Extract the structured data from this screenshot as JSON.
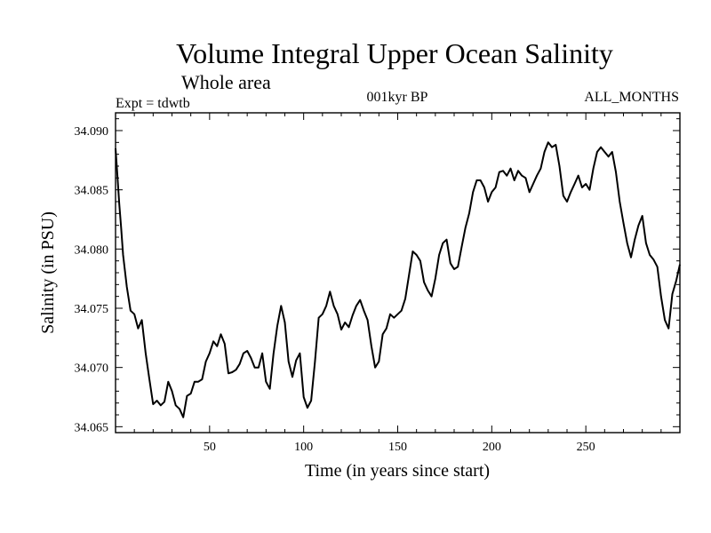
{
  "chart_data": {
    "type": "line",
    "title": "Volume Integral Upper Ocean Salinity",
    "subtitle": "Whole area",
    "expt_label": "Expt = tdwtb",
    "period_label": "001kyr BP",
    "months_label": "ALL_MONTHS",
    "xlabel": "Time (in years since start)",
    "ylabel": "Salinity (in PSU)",
    "xlim": [
      0,
      300
    ],
    "ylim": [
      34.0645,
      34.0915
    ],
    "xticks": [
      50,
      100,
      150,
      200,
      250
    ],
    "xtick_labels": [
      "50",
      "100",
      "150",
      "200",
      "250"
    ],
    "yticks": [
      34.065,
      34.07,
      34.075,
      34.08,
      34.085,
      34.09
    ],
    "ytick_labels": [
      "34.065",
      "34.070",
      "34.075",
      "34.080",
      "34.085",
      "34.090"
    ],
    "series": [
      {
        "name": "Salinity",
        "x": [
          0,
          1,
          2,
          3,
          4,
          6,
          8,
          10,
          12,
          14,
          16,
          18,
          20,
          22,
          24,
          26,
          28,
          30,
          32,
          34,
          36,
          38,
          40,
          42,
          44,
          46,
          48,
          50,
          52,
          54,
          56,
          58,
          60,
          62,
          64,
          66,
          68,
          70,
          72,
          74,
          76,
          78,
          80,
          82,
          84,
          86,
          88,
          90,
          92,
          94,
          96,
          98,
          100,
          102,
          104,
          106,
          108,
          110,
          112,
          114,
          116,
          118,
          120,
          122,
          124,
          126,
          128,
          130,
          132,
          134,
          136,
          138,
          140,
          142,
          144,
          146,
          148,
          150,
          152,
          154,
          156,
          158,
          160,
          162,
          164,
          166,
          168,
          170,
          172,
          174,
          176,
          178,
          180,
          182,
          184,
          186,
          188,
          190,
          192,
          194,
          196,
          198,
          200,
          202,
          204,
          206,
          208,
          210,
          212,
          214,
          216,
          218,
          220,
          222,
          224,
          226,
          228,
          230,
          232,
          234,
          236,
          238,
          240,
          242,
          244,
          246,
          248,
          250,
          252,
          254,
          256,
          258,
          260,
          262,
          264,
          266,
          268,
          270,
          272,
          274,
          276,
          278,
          280,
          282,
          284,
          286,
          288,
          290,
          292,
          294,
          296,
          298,
          300
        ],
        "values": [
          34.0885,
          34.0862,
          34.0838,
          34.0818,
          34.0795,
          34.0768,
          34.0748,
          34.0745,
          34.0733,
          34.074,
          34.0712,
          34.069,
          34.0669,
          34.0672,
          34.0668,
          34.0671,
          34.0688,
          34.068,
          34.0668,
          34.0665,
          34.0658,
          34.0676,
          34.0678,
          34.0688,
          34.0688,
          34.069,
          34.0705,
          34.0712,
          34.0722,
          34.0718,
          34.0728,
          34.072,
          34.0695,
          34.0696,
          34.0698,
          34.0703,
          34.0712,
          34.0714,
          34.0708,
          34.07,
          34.07,
          34.0712,
          34.0688,
          34.0682,
          34.0712,
          34.0735,
          34.0752,
          34.0738,
          34.0705,
          34.0692,
          34.0706,
          34.0712,
          34.0675,
          34.0666,
          34.0672,
          34.0705,
          34.0742,
          34.0745,
          34.0752,
          34.0764,
          34.0752,
          34.0745,
          34.0732,
          34.0738,
          34.0734,
          34.0744,
          34.0752,
          34.0757,
          34.0748,
          34.074,
          34.0718,
          34.07,
          34.0705,
          34.0728,
          34.0733,
          34.0745,
          34.0742,
          34.0745,
          34.0748,
          34.0758,
          34.0778,
          34.0798,
          34.0795,
          34.079,
          34.0772,
          34.0765,
          34.076,
          34.0775,
          34.0795,
          34.0805,
          34.0808,
          34.0788,
          34.0783,
          34.0785,
          34.0802,
          34.0818,
          34.083,
          34.0848,
          34.0858,
          34.0858,
          34.0852,
          34.084,
          34.0848,
          34.0852,
          34.0865,
          34.0866,
          34.0862,
          34.0868,
          34.0858,
          34.0866,
          34.0862,
          34.086,
          34.0848,
          34.0855,
          34.0862,
          34.0868,
          34.0882,
          34.089,
          34.0886,
          34.0888,
          34.087,
          34.0845,
          34.084,
          34.0848,
          34.0855,
          34.0862,
          34.0852,
          34.0855,
          34.085,
          34.0868,
          34.0882,
          34.0886,
          34.0882,
          34.0878,
          34.0882,
          34.0865,
          34.084,
          34.0822,
          34.0805,
          34.0793,
          34.0808,
          34.082,
          34.0828,
          34.0805,
          34.0795,
          34.0791,
          34.0785,
          34.076,
          34.074,
          34.0733,
          34.0762,
          34.0773,
          34.0787
        ]
      }
    ]
  }
}
